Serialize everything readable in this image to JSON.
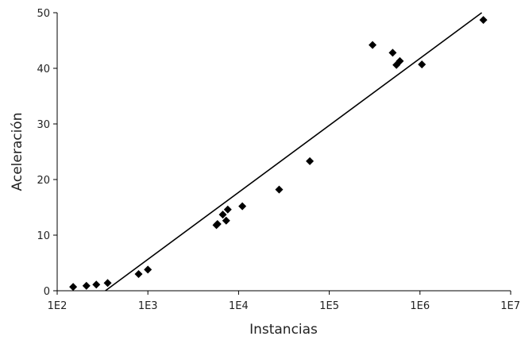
{
  "chart_data": {
    "type": "scatter",
    "title": "",
    "xlabel": "Instancias",
    "ylabel": "Aceleración",
    "x_scale": "log",
    "xlim": [
      100,
      10000000
    ],
    "ylim": [
      0,
      50
    ],
    "x_ticks": [
      {
        "value": 100,
        "label": "1E2"
      },
      {
        "value": 1000,
        "label": "1E3"
      },
      {
        "value": 10000,
        "label": "1E4"
      },
      {
        "value": 100000,
        "label": "1E5"
      },
      {
        "value": 1000000,
        "label": "1E6"
      },
      {
        "value": 10000000,
        "label": "1E7"
      }
    ],
    "y_ticks": [
      {
        "value": 0,
        "label": "0"
      },
      {
        "value": 10,
        "label": "10"
      },
      {
        "value": 20,
        "label": "20"
      },
      {
        "value": 30,
        "label": "30"
      },
      {
        "value": 40,
        "label": "40"
      },
      {
        "value": 50,
        "label": "50"
      }
    ],
    "grid": false,
    "marker": "diamond",
    "marker_color": "#000000",
    "series": [
      {
        "points": [
          {
            "x": 150,
            "y": 0.7
          },
          {
            "x": 210,
            "y": 0.9
          },
          {
            "x": 270,
            "y": 1.1
          },
          {
            "x": 360,
            "y": 1.4
          },
          {
            "x": 790,
            "y": 3.0
          },
          {
            "x": 1000,
            "y": 3.8
          },
          {
            "x": 5700,
            "y": 11.8
          },
          {
            "x": 5850,
            "y": 12.0
          },
          {
            "x": 6700,
            "y": 13.7
          },
          {
            "x": 7300,
            "y": 12.6
          },
          {
            "x": 7600,
            "y": 14.6
          },
          {
            "x": 11000,
            "y": 15.2
          },
          {
            "x": 28000,
            "y": 18.2
          },
          {
            "x": 61000,
            "y": 23.3
          },
          {
            "x": 300000,
            "y": 44.2
          },
          {
            "x": 500000,
            "y": 42.8
          },
          {
            "x": 550000,
            "y": 40.6
          },
          {
            "x": 600000,
            "y": 41.3
          },
          {
            "x": 1050000,
            "y": 40.7
          },
          {
            "x": 5000000,
            "y": 48.7
          }
        ]
      }
    ],
    "trendline": {
      "type": "logarithmic",
      "points": [
        {
          "x": 340,
          "y": 0
        },
        {
          "x": 4800000,
          "y": 50
        }
      ]
    }
  }
}
